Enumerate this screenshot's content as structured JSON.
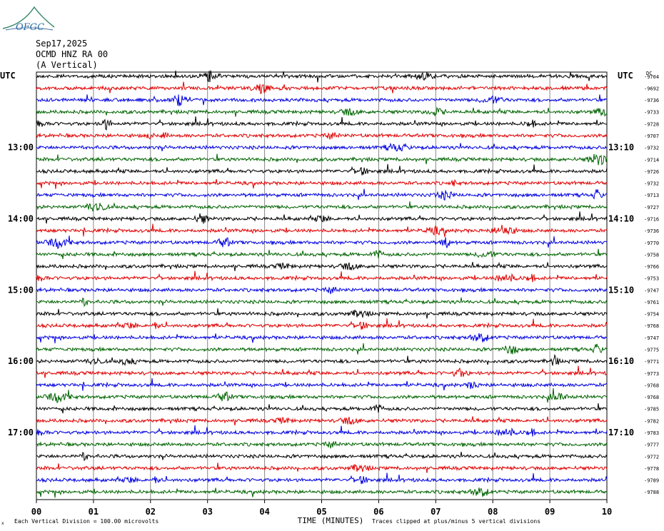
{
  "logo": {
    "text": "OFGC",
    "color": "#2e7d5b"
  },
  "header": {
    "date": "Sep17,2025",
    "station": "OCMD HNZ RA 00",
    "component": "(A Vertical)"
  },
  "chart_data": {
    "type": "line",
    "title": "",
    "xlabel": "TIME (MINUTES)",
    "ylabel": "",
    "left_axis_label": "UTC",
    "right_axis_label": "UTC",
    "dc_label": "DC",
    "xlim": [
      0,
      10
    ],
    "x_ticks": [
      "00",
      "01",
      "02",
      "03",
      "04",
      "05",
      "06",
      "07",
      "08",
      "09",
      "10"
    ],
    "left_time_labels": [
      {
        "row": 6,
        "text": "13:00"
      },
      {
        "row": 12,
        "text": "14:00"
      },
      {
        "row": 18,
        "text": "15:00"
      },
      {
        "row": 24,
        "text": "16:00"
      },
      {
        "row": 30,
        "text": "17:00"
      }
    ],
    "right_time_labels": [
      {
        "row": 6,
        "text": "13:10"
      },
      {
        "row": 12,
        "text": "14:10"
      },
      {
        "row": 18,
        "text": "15:10"
      },
      {
        "row": 24,
        "text": "16:10"
      },
      {
        "row": 30,
        "text": "17:10"
      }
    ],
    "trace_colors": [
      "#000000",
      "#e00000",
      "#0000e0",
      "#006400"
    ],
    "dc_offsets": [
      -9704,
      -9692,
      -9736,
      -9733,
      -9728,
      -9707,
      -9732,
      -9714,
      -9726,
      -9732,
      -9713,
      -9727,
      -9716,
      -9736,
      -9770,
      -9758,
      -9766,
      -9753,
      -9747,
      -9761,
      -9754,
      -9768,
      -9747,
      -9775,
      -9771,
      -9773,
      -9768,
      -9768,
      -9785,
      -9782,
      -9783,
      -9777,
      -9772,
      -9778,
      -9789,
      -9788
    ],
    "footer_left": "Each Vertical Division =  100.00 microvolts",
    "footer_right": "Traces clipped at plus/minus 5 vertical divisions",
    "footer_mark": "x"
  }
}
